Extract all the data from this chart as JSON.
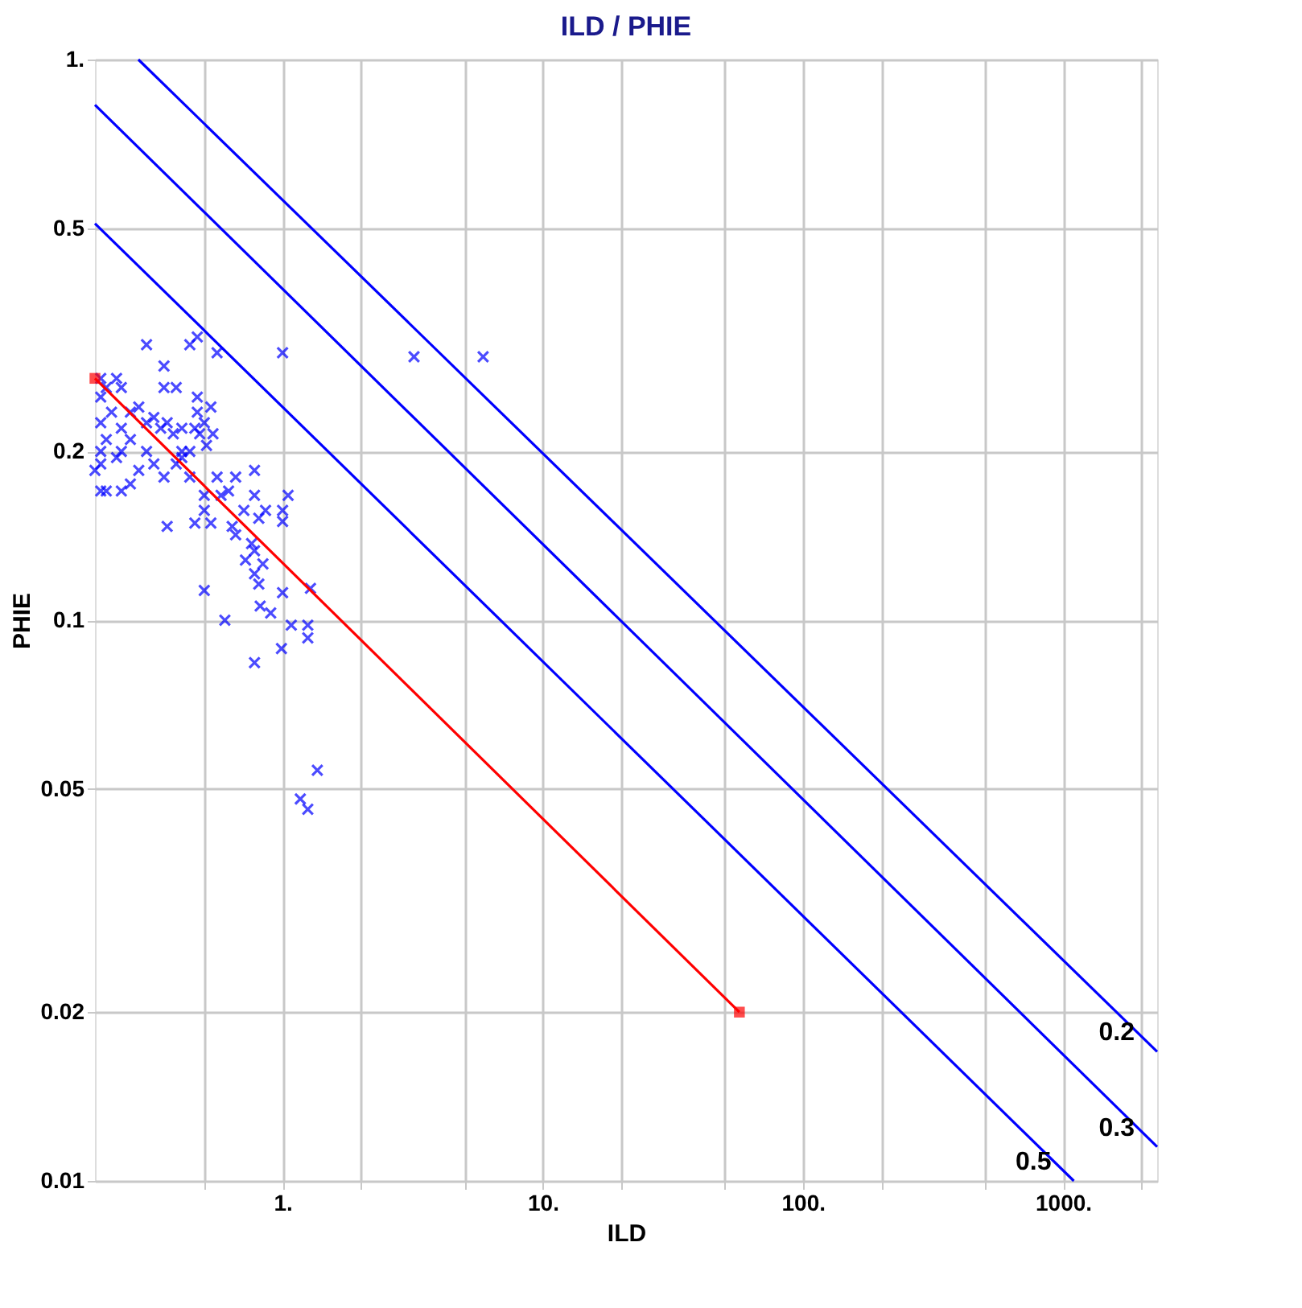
{
  "chart_data": {
    "type": "scatter",
    "title": "ILD / PHIE",
    "xlabel": "ILD",
    "ylabel": "PHIE",
    "log": "xy",
    "grid": true,
    "xlim": [
      0.19,
      2300
    ],
    "ylim": [
      0.01,
      1
    ],
    "xticks": [
      {
        "value": 0.5,
        "label": null
      },
      {
        "value": 1,
        "label": "1."
      },
      {
        "value": 2,
        "label": null
      },
      {
        "value": 5,
        "label": null
      },
      {
        "value": 10,
        "label": "10."
      },
      {
        "value": 20,
        "label": null
      },
      {
        "value": 50,
        "label": null
      },
      {
        "value": 100,
        "label": "100."
      },
      {
        "value": 200,
        "label": null
      },
      {
        "value": 500,
        "label": null
      },
      {
        "value": 1000,
        "label": "1000."
      },
      {
        "value": 2000,
        "label": null
      }
    ],
    "yticks": [
      0.01,
      0.02,
      0.05,
      0.1,
      0.2,
      0.5,
      {
        "value": 1,
        "label": "1."
      }
    ],
    "series": [
      {
        "marker": "cross",
        "color": "#0000ff",
        "x": [
          0.3,
          0.44,
          0.56,
          0.47,
          1.0,
          3.2,
          5.9,
          0.35,
          0.39,
          0.35,
          0.47,
          0.2,
          0.21,
          0.23,
          0.24,
          0.2,
          0.22,
          0.2,
          0.24,
          0.26,
          0.28,
          0.21,
          0.2,
          0.23,
          0.24,
          0.2,
          0.26,
          0.3,
          0.32,
          0.34,
          0.36,
          0.38,
          0.41,
          0.2,
          0.21,
          0.24,
          0.26,
          0.28,
          0.32,
          0.3,
          0.19,
          0.47,
          0.5,
          0.48,
          0.53,
          0.46,
          0.54,
          0.44,
          0.51,
          0.41,
          0.35,
          0.39,
          0.41,
          0.44,
          0.5,
          0.5,
          0.56,
          0.66,
          0.62,
          0.58,
          0.78,
          0.78,
          0.71,
          1.05,
          1.0,
          1.0,
          0.81,
          0.86,
          0.36,
          0.46,
          0.53,
          0.64,
          0.66,
          0.76,
          0.72,
          0.78,
          0.84,
          0.81,
          0.78,
          0.5,
          0.6,
          0.82,
          0.9,
          1.0,
          1.28,
          1.08,
          1.25,
          1.25,
          0.99,
          0.78,
          1.36,
          1.17,
          1.25
        ],
        "values": [
          0.31,
          0.31,
          0.3,
          0.32,
          0.3,
          0.295,
          0.295,
          0.284,
          0.26,
          0.26,
          0.25,
          0.27,
          0.26,
          0.27,
          0.26,
          0.25,
          0.235,
          0.225,
          0.22,
          0.235,
          0.24,
          0.21,
          0.2,
          0.195,
          0.2,
          0.19,
          0.21,
          0.225,
          0.23,
          0.22,
          0.225,
          0.215,
          0.22,
          0.17,
          0.17,
          0.17,
          0.175,
          0.185,
          0.19,
          0.2,
          0.185,
          0.235,
          0.225,
          0.215,
          0.24,
          0.22,
          0.215,
          0.2,
          0.205,
          0.2,
          0.18,
          0.19,
          0.195,
          0.18,
          0.167,
          0.157,
          0.18,
          0.18,
          0.17,
          0.167,
          0.185,
          0.167,
          0.157,
          0.167,
          0.15,
          0.157,
          0.152,
          0.157,
          0.147,
          0.149,
          0.149,
          0.147,
          0.142,
          0.137,
          0.128,
          0.121,
          0.126,
          0.116,
          0.133,
          0.113,
          0.1,
          0.106,
          0.103,
          0.112,
          0.114,
          0.098,
          0.098,
          0.093,
          0.089,
          0.084,
          0.054,
          0.048,
          0.046
        ]
      },
      {
        "type": "line",
        "name": "0.2",
        "marker": "none",
        "color": "#0000ff",
        "x": [
          0.279,
          2300
        ],
        "values": [
          1,
          0.017
        ]
      },
      {
        "type": "line",
        "name": "0.3",
        "marker": "none",
        "color": "#0000ff",
        "x": [
          0.19,
          2300
        ],
        "values": [
          0.83,
          0.0115
        ]
      },
      {
        "type": "line",
        "name": "0.5",
        "marker": "none",
        "color": "#0000ff",
        "x": [
          0.19,
          1100
        ],
        "values": [
          0.51,
          0.01
        ]
      },
      {
        "type": "line",
        "marker": "square",
        "color": "#ff0000",
        "x": [
          0.19,
          57
        ],
        "values": [
          0.27,
          0.02
        ]
      }
    ]
  }
}
